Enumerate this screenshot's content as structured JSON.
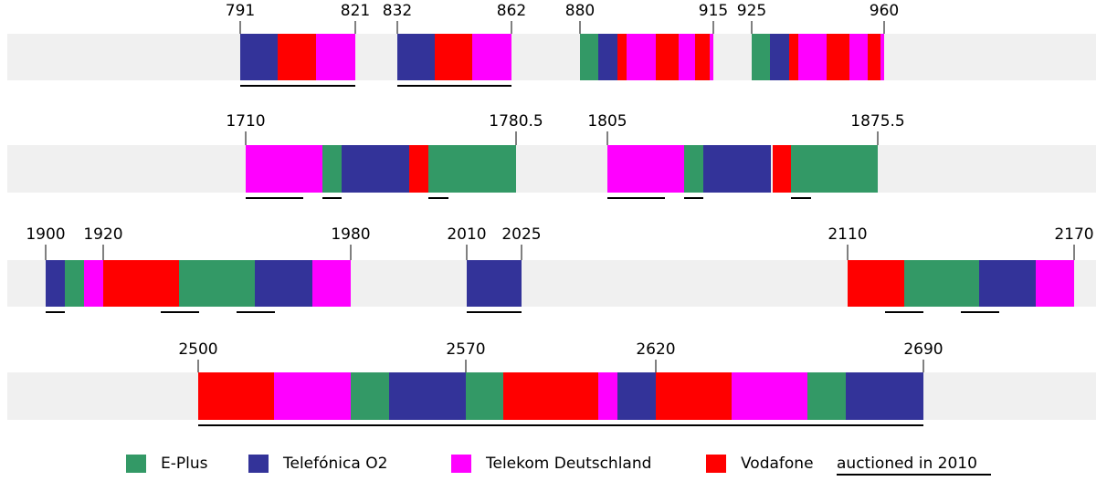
{
  "rows": [
    {
      "ticks": [
        791,
        821,
        832,
        862,
        880,
        915,
        925,
        960
      ]
    },
    {
      "ticks": [
        1710,
        1780.5,
        1805,
        1875.5
      ]
    },
    {
      "ticks": [
        1900,
        1920,
        1980,
        2010,
        2025,
        2110,
        2170
      ]
    },
    {
      "ticks": [
        2500,
        2570,
        2620,
        2690
      ]
    }
  ],
  "legend": [
    {
      "name": "E-Plus",
      "color": "#339966"
    },
    {
      "name": "Telefónica O2",
      "color": "#333399"
    },
    {
      "name": "Telekom Deutschland",
      "color": "#ff00ff"
    },
    {
      "name": "Vodafone",
      "color": "#ff0000"
    }
  ],
  "auctioned_label": "auctioned in 2010"
}
